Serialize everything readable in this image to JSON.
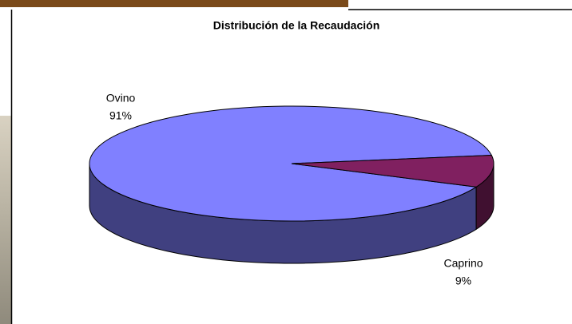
{
  "chart_data": {
    "type": "pie3d",
    "title": "Distribución de la Recaudación",
    "categories": [
      "Ovino",
      "Caprino"
    ],
    "values": [
      91,
      9
    ],
    "value_labels": [
      "91%",
      "9%"
    ],
    "colors": [
      "#8080ff",
      "#802060"
    ]
  }
}
